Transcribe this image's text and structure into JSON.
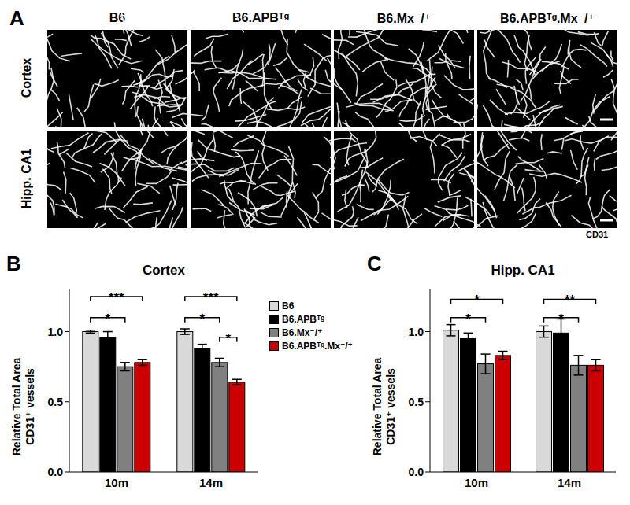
{
  "panel_a": {
    "label": "A",
    "columns": [
      "B6",
      "B6.APBᵀᵍ",
      "B6.Mx⁻/⁺",
      "B6.APBᵀᵍ.Mx⁻/⁺"
    ],
    "rows": [
      "Cortex",
      "Hipp. CA1"
    ],
    "stain": "CD31"
  },
  "chart_data": [
    {
      "type": "bar",
      "panel_label": "B",
      "title": "Cortex",
      "ylabel": "Relative Total Area\nCD31⁺ vessels",
      "categories": [
        "10m",
        "14m"
      ],
      "ylim": [
        0,
        1.3
      ],
      "yticks": [
        {
          "value": 0,
          "label": "0.0"
        },
        {
          "value": 0.5,
          "label": "0.5"
        },
        {
          "value": 1,
          "label": "1.0"
        }
      ],
      "legend": "right",
      "series": [
        {
          "name": "B6",
          "color": "#d9d9d9",
          "values": [
            1.0,
            1.0
          ],
          "errors": [
            0.01,
            0.02
          ]
        },
        {
          "name": "B6.APBᵀᵍ",
          "color": "#000000",
          "values": [
            0.96,
            0.88
          ],
          "errors": [
            0.04,
            0.03
          ]
        },
        {
          "name": "B6.Mx⁻/⁺",
          "color": "#808080",
          "values": [
            0.75,
            0.78
          ],
          "errors": [
            0.03,
            0.03
          ]
        },
        {
          "name": "B6.APBᵀᵍ.Mx⁻/⁺",
          "color": "#cc0000",
          "values": [
            0.78,
            0.64
          ],
          "errors": [
            0.02,
            0.02
          ]
        }
      ],
      "annotations": [
        {
          "category": "10m",
          "from": "B6",
          "to": "B6.Mx⁻/⁺",
          "label": "*",
          "y": 1.1
        },
        {
          "category": "10m",
          "from": "B6",
          "to": "B6.APBᵀᵍ.Mx⁻/⁺",
          "label": "***",
          "y": 1.25
        },
        {
          "category": "14m",
          "from": "B6",
          "to": "B6.Mx⁻/⁺",
          "label": "*",
          "y": 1.1
        },
        {
          "category": "14m",
          "from": "B6",
          "to": "B6.APBᵀᵍ.Mx⁻/⁺",
          "label": "***",
          "y": 1.25
        },
        {
          "category": "14m",
          "from": "B6.Mx⁻/⁺",
          "to": "B6.APBᵀᵍ.Mx⁻/⁺",
          "label": "*",
          "y": 0.96
        }
      ]
    },
    {
      "type": "bar",
      "panel_label": "C",
      "title": "Hipp. CA1",
      "ylabel": "Relative Total Area\nCD31⁺ vessels",
      "categories": [
        "10m",
        "14m"
      ],
      "ylim": [
        0,
        1.3
      ],
      "yticks": [
        {
          "value": 0,
          "label": "0.0"
        },
        {
          "value": 0.5,
          "label": "0.5"
        },
        {
          "value": 1,
          "label": "1.0"
        }
      ],
      "series": [
        {
          "name": "B6",
          "color": "#d9d9d9",
          "values": [
            1.01,
            1.0
          ],
          "errors": [
            0.04,
            0.04
          ]
        },
        {
          "name": "B6.APBᵀᵍ",
          "color": "#000000",
          "values": [
            0.95,
            0.99
          ],
          "errors": [
            0.04,
            0.1
          ]
        },
        {
          "name": "B6.Mx⁻/⁺",
          "color": "#808080",
          "values": [
            0.77,
            0.76
          ],
          "errors": [
            0.07,
            0.07
          ]
        },
        {
          "name": "B6.APBᵀᵍ.Mx⁻/⁺",
          "color": "#cc0000",
          "values": [
            0.83,
            0.76
          ],
          "errors": [
            0.03,
            0.04
          ]
        }
      ],
      "annotations": [
        {
          "category": "10m",
          "from": "B6",
          "to": "B6.Mx⁻/⁺",
          "label": "*",
          "y": 1.1
        },
        {
          "category": "10m",
          "from": "B6",
          "to": "B6.APBᵀᵍ.Mx⁻/⁺",
          "label": "*",
          "y": 1.23
        },
        {
          "category": "14m",
          "from": "B6",
          "to": "B6.Mx⁻/⁺",
          "label": "*",
          "y": 1.1
        },
        {
          "category": "14m",
          "from": "B6",
          "to": "B6.APBᵀᵍ.Mx⁻/⁺",
          "label": "**",
          "y": 1.23
        }
      ]
    }
  ]
}
